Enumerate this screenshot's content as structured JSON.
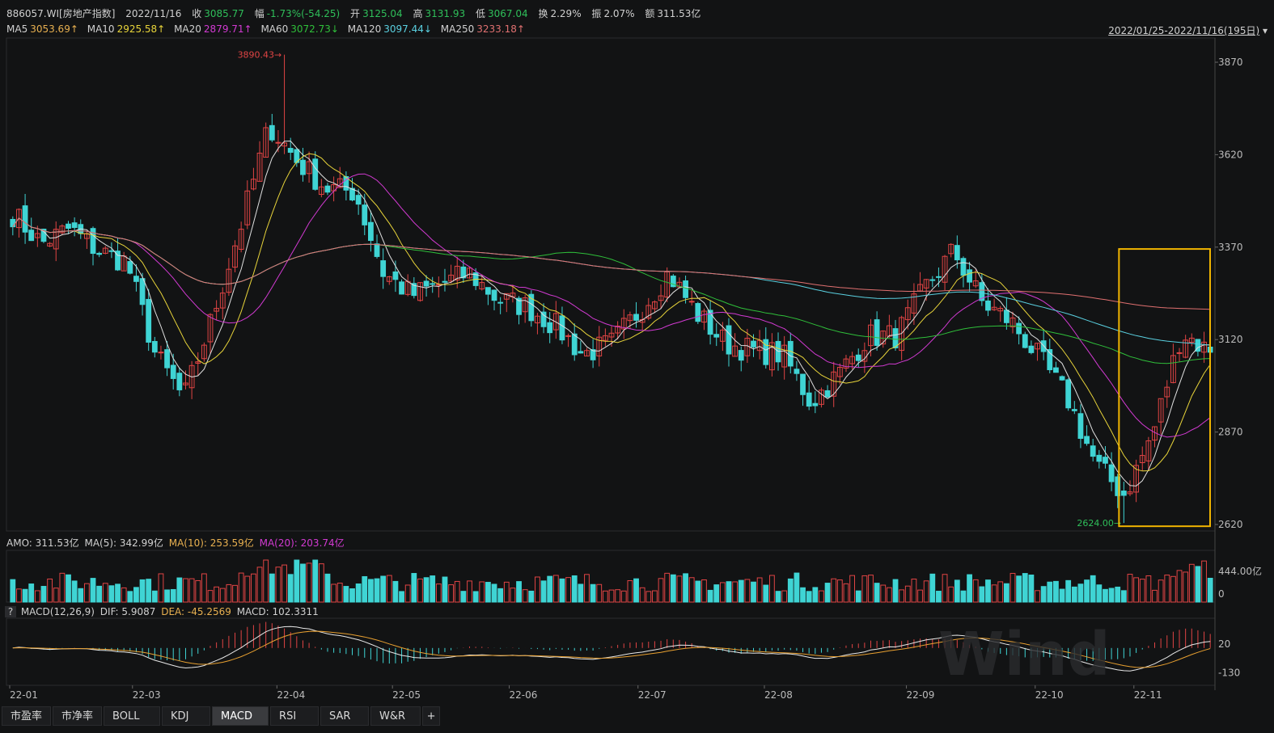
{
  "header": {
    "code": "886057.WI[房地产指数]",
    "date": "2022/11/16",
    "close_label": "收",
    "close": "3085.77",
    "chg_label": "幅",
    "chg": "-1.73%(-54.25)",
    "open_label": "开",
    "open": "3125.04",
    "high_label": "高",
    "high": "3131.93",
    "low_label": "低",
    "low": "3067.04",
    "turnover_label": "换",
    "turnover": "2.29%",
    "amp_label": "振",
    "amp": "2.07%",
    "amount_label": "额",
    "amount": "311.53亿"
  },
  "ma_line": {
    "ma5_label": "MA5",
    "ma5": "3053.69↑",
    "ma10_label": "MA10",
    "ma10": "2925.58↑",
    "ma20_label": "MA20",
    "ma20": "2879.71↑",
    "ma60_label": "MA60",
    "ma60": "3072.73↓",
    "ma120_label": "MA120",
    "ma120": "3097.44↓",
    "ma250_label": "MA250",
    "ma250": "3233.18↑"
  },
  "range": {
    "text": "2022/01/25-2022/11/16(195日)",
    "arrow": "▾"
  },
  "price_axis": [
    "3870",
    "3620",
    "3370",
    "3120",
    "2870",
    "2620"
  ],
  "annotations": {
    "high": "3890.43",
    "low": "2624.00"
  },
  "amo_line": {
    "amo": "AMO: 311.53亿",
    "ma5": "MA(5): 342.99亿",
    "ma10": "MA(10): 253.59亿",
    "ma20": "MA(20): 203.74亿"
  },
  "vol_axis": [
    "444.00亿",
    "0"
  ],
  "macd_line": {
    "help": "?",
    "macd": "MACD(12,26,9)",
    "dif": "DIF: 5.9087",
    "dea": "DEA: -45.2569",
    "val": "MACD: 102.3311"
  },
  "macd_axis": [
    "20",
    "-130"
  ],
  "date_axis": [
    "22-01",
    "22-03",
    "22-04",
    "22-05",
    "22-06",
    "22-07",
    "22-08",
    "22-09",
    "22-10",
    "22-11"
  ],
  "watermark": "Wind",
  "tabs": [
    "市盈率",
    "市净率",
    "BOLL",
    "KDJ",
    "MACD",
    "RSI",
    "SAR",
    "W&R"
  ],
  "active_tab": "MACD",
  "plus": "+",
  "colors": {
    "up": "#e04444",
    "down": "#3fd4d4",
    "ma5": "#e0e0e0",
    "ma10": "#e8d43a",
    "ma20": "#d23ad2",
    "ma60": "#2fbf3a",
    "ma120": "#5ad0e0",
    "ma250": "#e07070",
    "highlight": "#f0b400"
  },
  "chart_data": {
    "type": "candlestick",
    "title": "886057.WI[房地产指数]",
    "period": "2022/01/25-2022/11/16",
    "ylim": [
      2620,
      3870
    ],
    "series": [
      {
        "name": "MA5",
        "last": 3053.69
      },
      {
        "name": "MA10",
        "last": 2925.58
      },
      {
        "name": "MA20",
        "last": 2879.71
      },
      {
        "name": "MA60",
        "last": 3072.73
      },
      {
        "name": "MA120",
        "last": 3097.44
      },
      {
        "name": "MA250",
        "last": 3233.18
      }
    ],
    "close_path": [
      [
        "22-01",
        3460
      ],
      [
        "22-01",
        3380
      ],
      [
        "22-02",
        3420
      ],
      [
        "22-02",
        3360
      ],
      [
        "22-03",
        3330
      ],
      [
        "22-03",
        3080
      ],
      [
        "22-03",
        2960
      ],
      [
        "22-03",
        3180
      ],
      [
        "22-03",
        3430
      ],
      [
        "22-04",
        3700
      ],
      [
        "22-04",
        3600
      ],
      [
        "22-04",
        3530
      ],
      [
        "22-04",
        3520
      ],
      [
        "22-04",
        3300
      ],
      [
        "22-04",
        3240
      ],
      [
        "22-05",
        3270
      ],
      [
        "22-05",
        3300
      ],
      [
        "22-05",
        3230
      ],
      [
        "22-05",
        3210
      ],
      [
        "22-06",
        3160
      ],
      [
        "22-06",
        3080
      ],
      [
        "22-06",
        3110
      ],
      [
        "22-06",
        3200
      ],
      [
        "22-07",
        3300
      ],
      [
        "22-07",
        3190
      ],
      [
        "22-07",
        3110
      ],
      [
        "22-07",
        3090
      ],
      [
        "22-08",
        3080
      ],
      [
        "22-08",
        2950
      ],
      [
        "22-08",
        3030
      ],
      [
        "22-08",
        3130
      ],
      [
        "22-09",
        3130
      ],
      [
        "22-09",
        3260
      ],
      [
        "22-09",
        3360
      ],
      [
        "22-09",
        3220
      ],
      [
        "22-10",
        3170
      ],
      [
        "22-10",
        3070
      ],
      [
        "22-10",
        2960
      ],
      [
        "22-10",
        2780
      ],
      [
        "22-11",
        2700
      ],
      [
        "22-11",
        2870
      ],
      [
        "22-11",
        3140
      ],
      [
        "22-11",
        3085.77
      ]
    ],
    "high": 3890.43,
    "low": 2624.0,
    "amount_axis": [
      "444.00亿",
      "0"
    ],
    "macd": {
      "dif": 5.9087,
      "dea": -45.2569,
      "macd": 102.3311,
      "ticks": [
        20,
        -130
      ]
    }
  }
}
